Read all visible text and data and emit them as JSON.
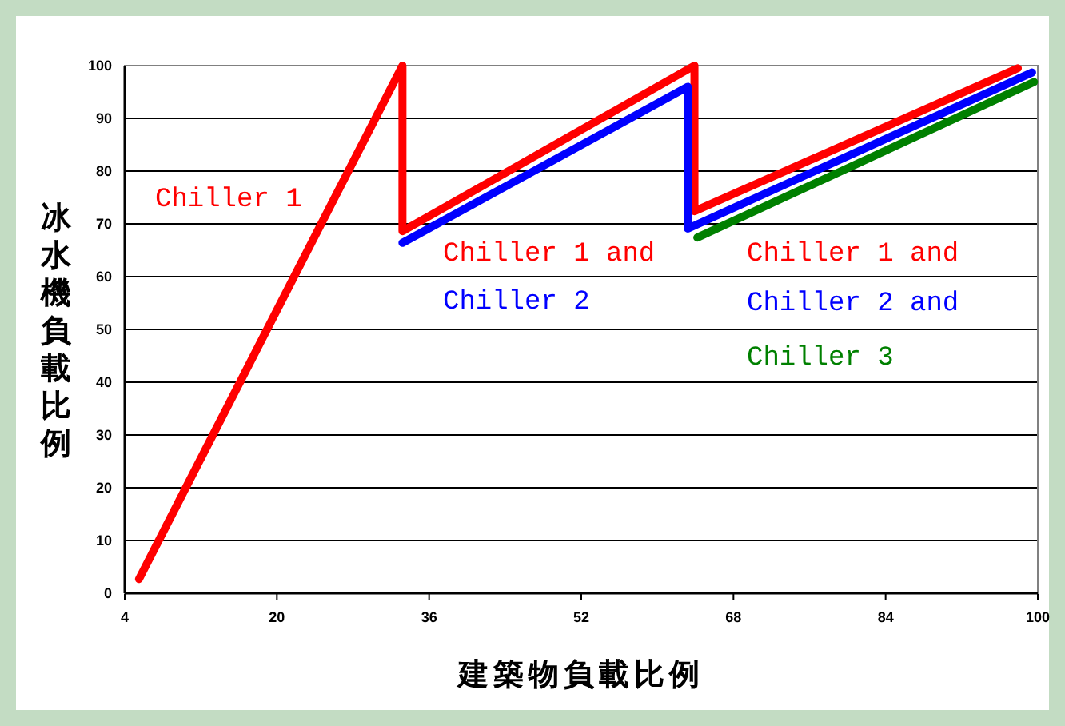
{
  "chart_data": {
    "type": "line",
    "xlabel": "建築物負載比例",
    "ylabel": "冰水機負載比例",
    "xlim": [
      4,
      100
    ],
    "xticks": [
      4,
      20,
      36,
      52,
      68,
      84,
      100
    ],
    "ylim": [
      0,
      100
    ],
    "yticks": [
      0,
      10,
      20,
      30,
      40,
      50,
      60,
      70,
      80,
      90,
      100
    ],
    "grid": "y",
    "marker": "none",
    "line_style": "solid",
    "series": [
      {
        "color": "#ff0000",
        "x": [
          5.5,
          33.2,
          33.2,
          63.9,
          63.9,
          97.9
        ],
        "values": [
          2.7,
          100,
          68.6,
          100,
          72.4,
          99.5
        ]
      },
      {
        "color": "#0000ff",
        "x": [
          33.2,
          63.2,
          63.2,
          99.4
        ],
        "values": [
          66.4,
          96,
          69.1,
          98.7
        ]
      },
      {
        "color": "#008000",
        "x": [
          64.2,
          99.6
        ],
        "values": [
          67.4,
          96.9
        ]
      }
    ],
    "annotations": [
      "Chiller 1",
      "Chiller 1 and",
      "Chiller 2",
      "Chiller 1 and",
      "Chiller 2 and",
      "Chiller 3"
    ]
  }
}
